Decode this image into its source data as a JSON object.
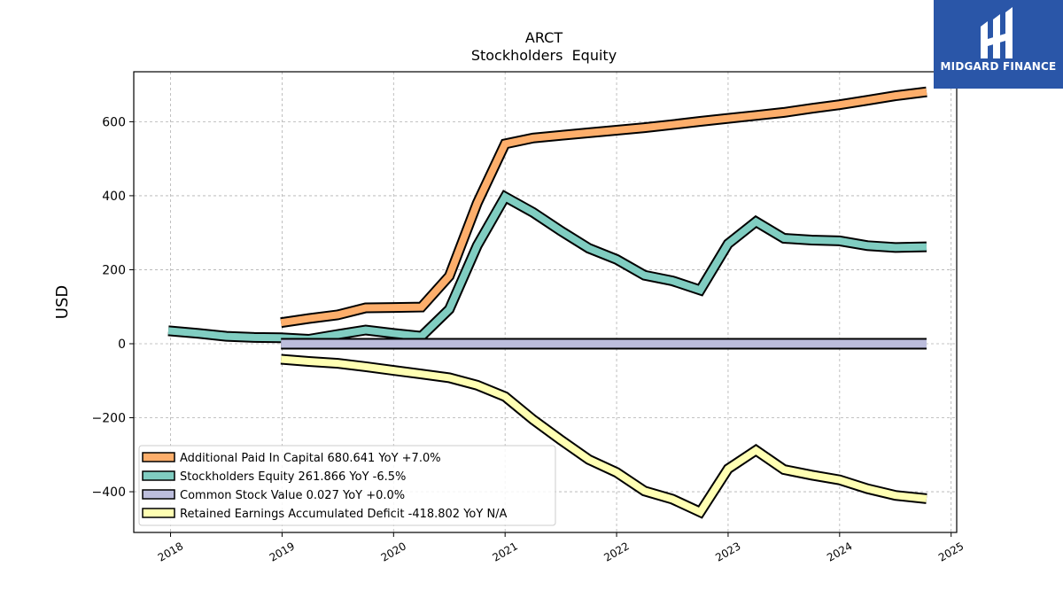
{
  "logo": {
    "text": "MIDGARD FINANCE",
    "bg_color": "#2a56a8"
  },
  "chart_data": {
    "type": "line",
    "title": "ARCT",
    "subtitle": "Stockholders  Equity",
    "ylabel": "USD",
    "xlabel": "",
    "xlim": [
      2017.67,
      2025.05
    ],
    "ylim": [
      -510,
      735
    ],
    "yticks": [
      -400,
      -200,
      0,
      200,
      400,
      600
    ],
    "ytick_labels": [
      "−400",
      "−200",
      "0",
      "200",
      "400",
      "600"
    ],
    "xticks": [
      2018,
      2019,
      2020,
      2021,
      2022,
      2023,
      2024,
      2025
    ],
    "xtick_labels": [
      "2018",
      "2019",
      "2020",
      "2021",
      "2022",
      "2023",
      "2024",
      "2025"
    ],
    "grid": true,
    "legend_position": "lower-left",
    "series": [
      {
        "name": "Additional Paid In Capital",
        "legend": "Additional Paid In Capital  680.641 YoY +7.0%",
        "color": "#fdae6b",
        "x": [
          2018.99,
          2019.24,
          2019.5,
          2019.75,
          2020.0,
          2020.25,
          2020.5,
          2020.75,
          2021.0,
          2021.25,
          2021.5,
          2021.75,
          2022.0,
          2022.25,
          2022.5,
          2022.75,
          2023.0,
          2023.25,
          2023.5,
          2023.75,
          2024.0,
          2024.25,
          2024.5,
          2024.78
        ],
        "values": [
          57,
          68,
          78,
          97,
          98,
          99,
          183,
          380,
          540,
          556,
          563,
          570,
          577,
          584,
          592,
          601,
          609,
          617,
          625,
          636,
          646,
          658,
          670,
          680.641
        ]
      },
      {
        "name": "Stockholders Equity",
        "legend": "Stockholders Equity  261.866 YoY -6.5%",
        "color": "#80cdc1",
        "x": [
          2017.98,
          2018.25,
          2018.5,
          2018.75,
          2018.99,
          2019.24,
          2019.5,
          2019.75,
          2020.0,
          2020.25,
          2020.5,
          2020.75,
          2021.0,
          2021.25,
          2021.5,
          2021.75,
          2022.0,
          2022.25,
          2022.5,
          2022.75,
          2023.0,
          2023.25,
          2023.5,
          2023.75,
          2024.0,
          2024.25,
          2024.5,
          2024.78
        ],
        "values": [
          35,
          28,
          20,
          17,
          16,
          12,
          25,
          37,
          28,
          20,
          93,
          265,
          397,
          355,
          305,
          258,
          228,
          185,
          170,
          145,
          270,
          330,
          285,
          280,
          278,
          265,
          260,
          261.866
        ]
      },
      {
        "name": "Common Stock Value",
        "legend": "Common Stock Value  0.027 YoY +0.0%",
        "color": "#bcbddc",
        "x": [
          2018.99,
          2024.78
        ],
        "values": [
          0.027,
          0.027
        ]
      },
      {
        "name": "Retained Earnings Accumulated Deficit",
        "legend": "Retained Earnings Accumulated Deficit  -418.802 YoY N/A",
        "color": "#ffffb3",
        "x": [
          2018.99,
          2019.24,
          2019.5,
          2019.75,
          2020.0,
          2020.25,
          2020.5,
          2020.75,
          2021.0,
          2021.25,
          2021.5,
          2021.75,
          2022.0,
          2022.25,
          2022.5,
          2022.75,
          2023.0,
          2023.25,
          2023.5,
          2023.75,
          2024.0,
          2024.25,
          2024.5,
          2024.78
        ],
        "values": [
          -42,
          -48,
          -53,
          -62,
          -72,
          -82,
          -92,
          -112,
          -143,
          -205,
          -260,
          -313,
          -348,
          -398,
          -420,
          -455,
          -338,
          -288,
          -340,
          -355,
          -368,
          -392,
          -410,
          -418.802
        ]
      }
    ]
  }
}
